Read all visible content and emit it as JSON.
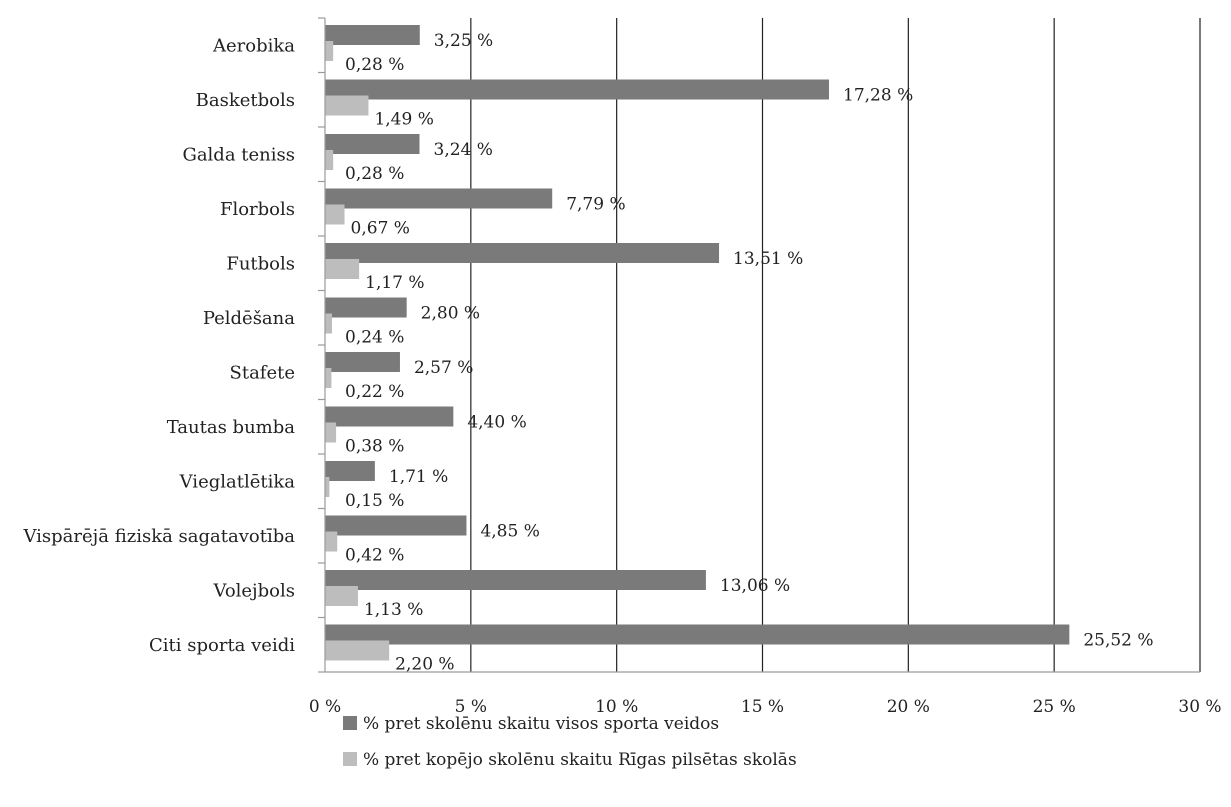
{
  "chart_data": {
    "type": "bar",
    "orientation": "horizontal",
    "categories": [
      "Aerobika",
      "Basketbols",
      "Galda teniss",
      "Florbols",
      "Futbols",
      "Peldēšana",
      "Stafete",
      "Tautas bumba",
      "Vieglatlētika",
      "Vispārējā fiziskā sagatavotība",
      "Volejbols",
      "Citi sporta veidi"
    ],
    "series": [
      {
        "name": "% pret skolēnu skaitu visos sporta veidos",
        "color": "#7a7a7a",
        "values": [
          3.25,
          17.28,
          3.24,
          7.79,
          13.51,
          2.8,
          2.57,
          4.4,
          1.71,
          4.85,
          13.06,
          25.52
        ],
        "labels": [
          "3,25 %",
          "17,28 %",
          "3,24 %",
          "7,79 %",
          "13,51 %",
          "2,80 %",
          "2,57 %",
          "4,40 %",
          "1,71 %",
          "4,85 %",
          "13,06 %",
          "25,52 %"
        ]
      },
      {
        "name": "% pret kopējo skolēnu skaitu Rīgas pilsētas skolās",
        "color": "#bdbdbd",
        "values": [
          0.28,
          1.49,
          0.28,
          0.67,
          1.17,
          0.24,
          0.22,
          0.38,
          0.15,
          0.42,
          1.13,
          2.2
        ],
        "labels": [
          "0,28 %",
          "1,49 %",
          "0,28 %",
          "0,67 %",
          "1,17 %",
          "0,24 %",
          "0,22 %",
          "0,38 %",
          "0,15 %",
          "0,42 %",
          "1,13 %",
          "2,20 %"
        ]
      }
    ],
    "xlim": [
      0,
      30
    ],
    "xticks": [
      0,
      5,
      10,
      15,
      20,
      25,
      30
    ],
    "xtick_labels": [
      "0 %",
      "5 %",
      "10 %",
      "15 %",
      "20 %",
      "25 %",
      "30 %"
    ],
    "grid": "vertical",
    "legend": "bottom"
  }
}
